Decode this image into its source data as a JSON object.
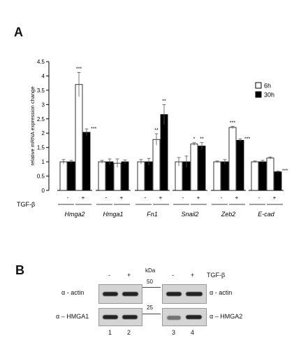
{
  "panels": {
    "a": "A",
    "b": "B"
  },
  "chart_data": {
    "type": "bar",
    "ylabel": "relative mRNA expression change",
    "ylim": [
      0,
      4.5
    ],
    "yticks": [
      "0",
      "0.5",
      "1",
      "1.5",
      "2",
      "2.5",
      "3",
      "3.5",
      "4",
      "4.5"
    ],
    "legend_position": "top-right",
    "series": [
      {
        "name": "6h",
        "color": "#ffffff"
      },
      {
        "name": "30h",
        "color": "#000000"
      }
    ],
    "treatment_label": "TGF-β",
    "treatment_states": [
      "-",
      "+"
    ],
    "genes": [
      {
        "label": "Hmga2",
        "bars": [
          {
            "v": 1.0,
            "e": 0.08,
            "sig": ""
          },
          {
            "v": 1.0,
            "e": 0.05,
            "sig": ""
          },
          {
            "v": 3.7,
            "e": 0.42,
            "sig": "***"
          },
          {
            "v": 2.03,
            "e": 0.12,
            "sig": "***"
          }
        ]
      },
      {
        "label": "Hmga1",
        "bars": [
          {
            "v": 1.0,
            "e": 0.05,
            "sig": ""
          },
          {
            "v": 1.0,
            "e": 0.1,
            "sig": ""
          },
          {
            "v": 0.95,
            "e": 0.15,
            "sig": ""
          },
          {
            "v": 1.0,
            "e": 0.06,
            "sig": ""
          }
        ]
      },
      {
        "label": "Fn1",
        "bars": [
          {
            "v": 1.0,
            "e": 0.08,
            "sig": ""
          },
          {
            "v": 1.0,
            "e": 0.12,
            "sig": ""
          },
          {
            "v": 1.78,
            "e": 0.2,
            "sig": "**"
          },
          {
            "v": 2.65,
            "e": 0.35,
            "sig": "**"
          }
        ]
      },
      {
        "label": "Snail2",
        "bars": [
          {
            "v": 1.0,
            "e": 0.15,
            "sig": ""
          },
          {
            "v": 1.0,
            "e": 0.2,
            "sig": ""
          },
          {
            "v": 1.62,
            "e": 0.05,
            "sig": "*"
          },
          {
            "v": 1.55,
            "e": 0.12,
            "sig": "**"
          }
        ]
      },
      {
        "label": "Zeb2",
        "bars": [
          {
            "v": 1.0,
            "e": 0.03,
            "sig": ""
          },
          {
            "v": 1.0,
            "e": 0.08,
            "sig": ""
          },
          {
            "v": 2.2,
            "e": 0.04,
            "sig": "***"
          },
          {
            "v": 1.75,
            "e": 0.05,
            "sig": "***"
          }
        ]
      },
      {
        "label": "E-cad",
        "bars": [
          {
            "v": 1.0,
            "e": 0.03,
            "sig": ""
          },
          {
            "v": 1.0,
            "e": 0.05,
            "sig": ""
          },
          {
            "v": 1.13,
            "e": 0.04,
            "sig": ""
          },
          {
            "v": 0.65,
            "e": 0.03,
            "sig": "***"
          }
        ]
      }
    ]
  },
  "blot": {
    "treatment_label": "TGF-β",
    "treatment_states": [
      "-",
      "+",
      "-",
      "+"
    ],
    "kda_label": "kDa",
    "marker_50": "50",
    "marker_25": "25",
    "left_top_label": "α - actin",
    "left_bottom_label": "α – HMGA1",
    "right_top_label": "α - actin",
    "right_bottom_label": "α – HMGA2",
    "lanes": [
      "1",
      "2",
      "3",
      "4"
    ]
  }
}
